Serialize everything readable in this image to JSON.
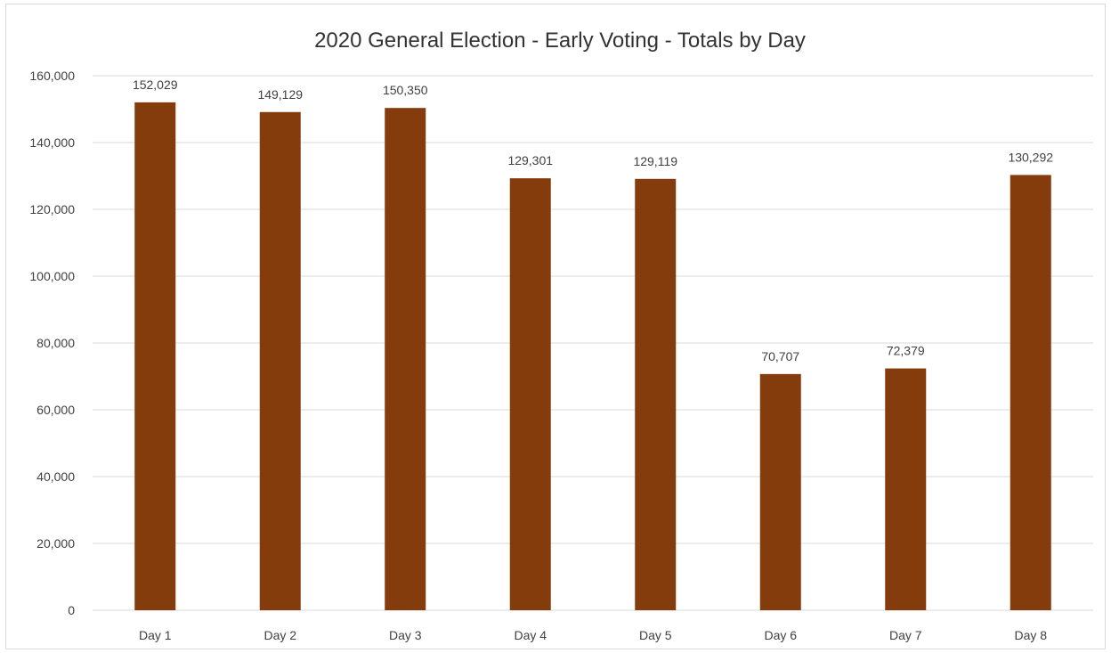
{
  "chart_data": {
    "type": "bar",
    "title": "2020 General Election - Early Voting - Totals by Day",
    "xlabel": "",
    "ylabel": "",
    "categories": [
      "Day 1",
      "Day 2",
      "Day 3",
      "Day 4",
      "Day 5",
      "Day 6",
      "Day 7",
      "Day 8"
    ],
    "values": [
      152029,
      149129,
      150350,
      129301,
      129119,
      70707,
      72379,
      130292
    ],
    "data_labels": [
      "152,029",
      "149,129",
      "150,350",
      "129,301",
      "129,119",
      "70,707",
      "72,379",
      "130,292"
    ],
    "ylim": [
      0,
      160000
    ],
    "y_ticks": [
      0,
      20000,
      40000,
      60000,
      80000,
      100000,
      120000,
      140000,
      160000
    ],
    "y_tick_labels": [
      "0",
      "20,000",
      "40,000",
      "60,000",
      "80,000",
      "100,000",
      "120,000",
      "140,000",
      "160,000"
    ],
    "grid": true,
    "legend": "none",
    "bar_color": "#843C0C",
    "grid_color": "#d9d9d9"
  }
}
